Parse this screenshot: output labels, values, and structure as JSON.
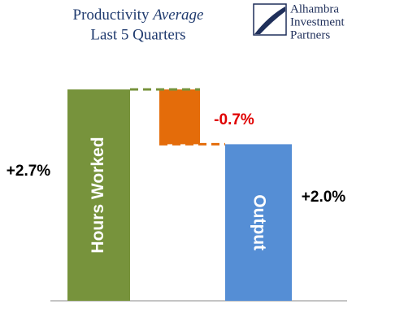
{
  "chart_data": {
    "type": "waterfall",
    "title": "Productivity",
    "title_emphasis": "Average",
    "subtitle": "Last 5 Quarters",
    "logo": [
      "Alhambra",
      "Investment",
      "Partners"
    ],
    "categories": [
      "Hours Worked",
      null,
      "Output"
    ],
    "measures": [
      "absolute",
      "relative",
      "total"
    ],
    "values": [
      2.7,
      -0.7,
      2.0
    ],
    "value_labels": [
      "+2.7%",
      "-0.7%",
      "+2.0%"
    ],
    "colors": [
      "#77933c",
      "#e46c0a",
      "#558ed5"
    ]
  }
}
